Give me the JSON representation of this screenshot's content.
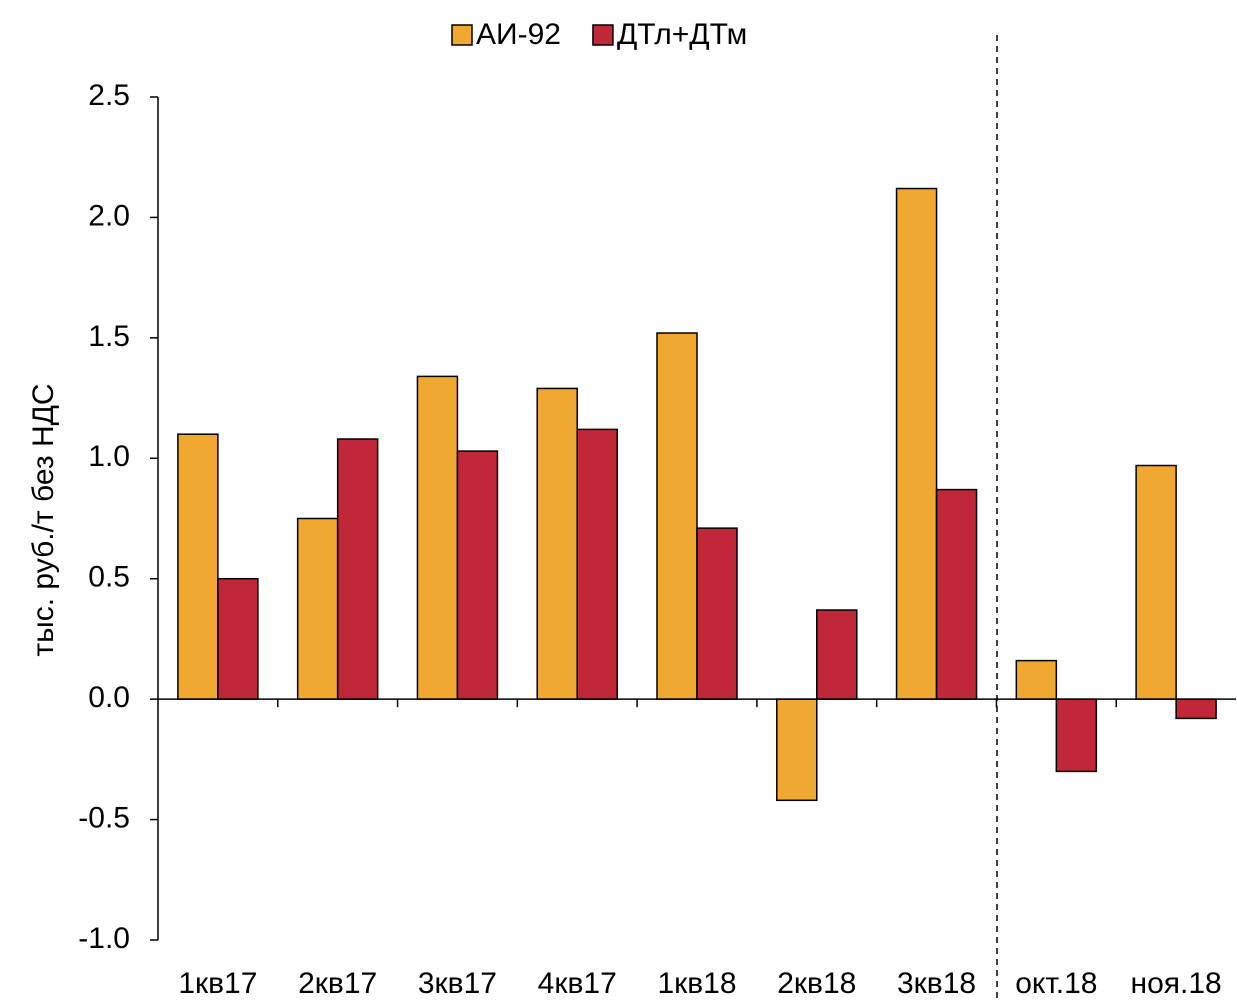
{
  "chart_data": {
    "type": "bar",
    "y_label": "тыс. руб./т без НДС",
    "categories": [
      "1кв17",
      "2кв17",
      "3кв17",
      "4кв17",
      "1кв18",
      "2кв18",
      "3кв18",
      "окт.18",
      "ноя.18"
    ],
    "series": [
      {
        "name": "АИ-92",
        "color": "#f0a830",
        "values": [
          1.1,
          0.75,
          1.34,
          1.29,
          1.52,
          -0.42,
          2.12,
          0.16,
          0.97
        ]
      },
      {
        "name": "ДТл+ДТм",
        "color": "#c0283a",
        "values": [
          0.5,
          1.08,
          1.03,
          1.12,
          0.71,
          0.37,
          0.87,
          -0.3,
          -0.08
        ]
      }
    ],
    "ylim": [
      -1.0,
      2.5
    ],
    "yticks": [
      {
        "value": -1.0,
        "label": "-1.0"
      },
      -0.5,
      {
        "value": 0.0,
        "label": "0.0"
      },
      0.5,
      {
        "value": 1.0,
        "label": "1.0"
      },
      1.5,
      {
        "value": 2.0,
        "label": "2.0"
      },
      2.5
    ],
    "legend": "top"
  }
}
